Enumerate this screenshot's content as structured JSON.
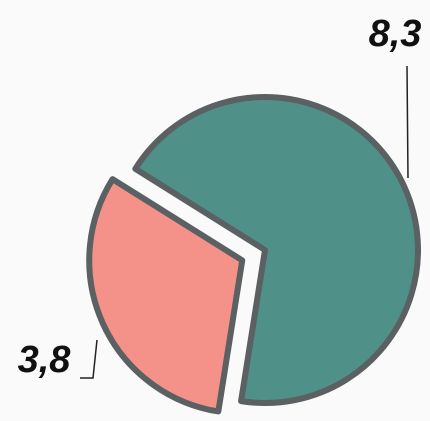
{
  "chart_data": {
    "type": "pie",
    "values": [
      8.3,
      3.8
    ],
    "value_labels": [
      "8,3",
      "3,8"
    ],
    "colors": [
      "#4f9088",
      "#f4928a"
    ],
    "exploded": [
      false,
      true
    ]
  }
}
